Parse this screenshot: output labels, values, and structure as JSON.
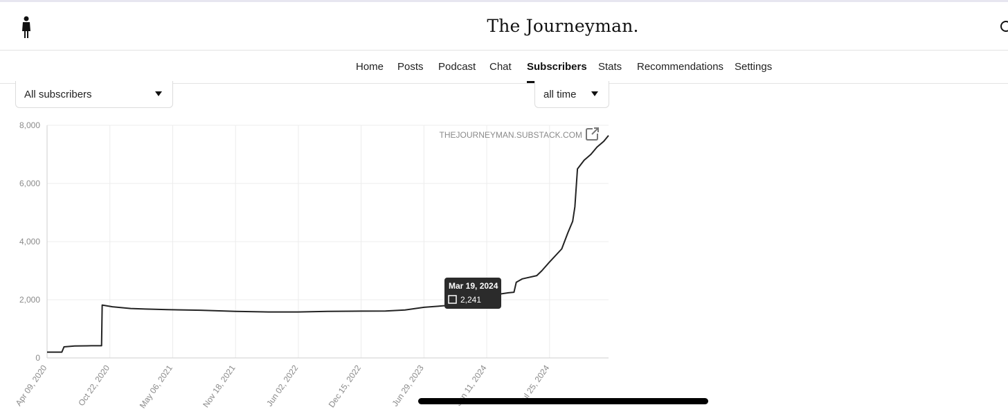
{
  "site": {
    "title": "The Journeyman."
  },
  "icons": {
    "logo": "person-silhouette-icon",
    "search": "search-icon",
    "external": "external-link-icon",
    "caret": "caret-down-icon"
  },
  "nav": {
    "items": [
      {
        "label": "Home",
        "active": false
      },
      {
        "label": "Posts",
        "active": false
      },
      {
        "label": "Podcast",
        "active": false
      },
      {
        "label": "Chat",
        "active": false
      },
      {
        "label": "Subscribers",
        "active": true
      },
      {
        "label": "Stats",
        "active": false
      },
      {
        "label": "Recommendations",
        "active": false
      },
      {
        "label": "Settings",
        "active": false
      }
    ]
  },
  "filters": {
    "audience": {
      "selected": "All subscribers"
    },
    "range": {
      "selected": "all time"
    }
  },
  "chart_data": {
    "type": "line",
    "watermark": "THEJOURNEYMAN.SUBSTACK.COM",
    "ylim": [
      0,
      8000
    ],
    "yticks": [
      0,
      2000,
      4000,
      6000,
      8000
    ],
    "ytick_labels": [
      "0",
      "2,000",
      "4,000",
      "6,000",
      "8,000"
    ],
    "xlim": [
      "2020-04-09",
      "2025-01-25"
    ],
    "xticks": [
      "2020-04-09",
      "2020-10-22",
      "2021-05-06",
      "2021-11-18",
      "2022-06-02",
      "2022-12-15",
      "2023-06-29",
      "2024-01-11",
      "2024-07-25"
    ],
    "xtick_labels": [
      "Apr 09, 2020",
      "Oct 22, 2020",
      "May 06, 2021",
      "Nov 18, 2021",
      "Jun 02, 2022",
      "Dec 15, 2022",
      "Jun 29, 2023",
      "Jan 11, 2024",
      "Jul 25, 2024"
    ],
    "grid": true,
    "line_color": "#222222",
    "series": [
      {
        "points": [
          [
            "2020-04-09",
            200
          ],
          [
            "2020-05-25",
            200
          ],
          [
            "2020-06-01",
            380
          ],
          [
            "2020-07-04",
            410
          ],
          [
            "2020-08-25",
            420
          ],
          [
            "2020-09-26",
            420
          ],
          [
            "2020-09-28",
            1820
          ],
          [
            "2020-10-30",
            1760
          ],
          [
            "2020-12-26",
            1700
          ],
          [
            "2021-02-10",
            1680
          ],
          [
            "2021-04-20",
            1660
          ],
          [
            "2021-08-01",
            1640
          ],
          [
            "2021-11-18",
            1600
          ],
          [
            "2022-03-01",
            1580
          ],
          [
            "2022-06-02",
            1580
          ],
          [
            "2022-09-01",
            1600
          ],
          [
            "2022-12-15",
            1610
          ],
          [
            "2023-03-01",
            1615
          ],
          [
            "2023-05-01",
            1650
          ],
          [
            "2023-06-29",
            1740
          ],
          [
            "2023-08-15",
            1780
          ],
          [
            "2023-10-20",
            1840
          ],
          [
            "2023-12-10",
            1990
          ],
          [
            "2024-01-11",
            2130
          ],
          [
            "2024-03-19",
            2241
          ],
          [
            "2024-04-05",
            2260
          ],
          [
            "2024-04-12",
            2600
          ],
          [
            "2024-05-01",
            2720
          ],
          [
            "2024-06-15",
            2830
          ],
          [
            "2024-07-01",
            3000
          ],
          [
            "2024-07-25",
            3300
          ],
          [
            "2024-09-01",
            3750
          ],
          [
            "2024-09-20",
            4300
          ],
          [
            "2024-10-05",
            4700
          ],
          [
            "2024-10-12",
            5200
          ],
          [
            "2024-10-20",
            6500
          ],
          [
            "2024-11-10",
            6800
          ],
          [
            "2024-12-01",
            7000
          ],
          [
            "2024-12-20",
            7250
          ],
          [
            "2025-01-10",
            7450
          ],
          [
            "2025-01-25",
            7650
          ]
        ]
      }
    ],
    "tooltip": {
      "date": "Mar 19, 2024",
      "value": "2,241"
    }
  }
}
